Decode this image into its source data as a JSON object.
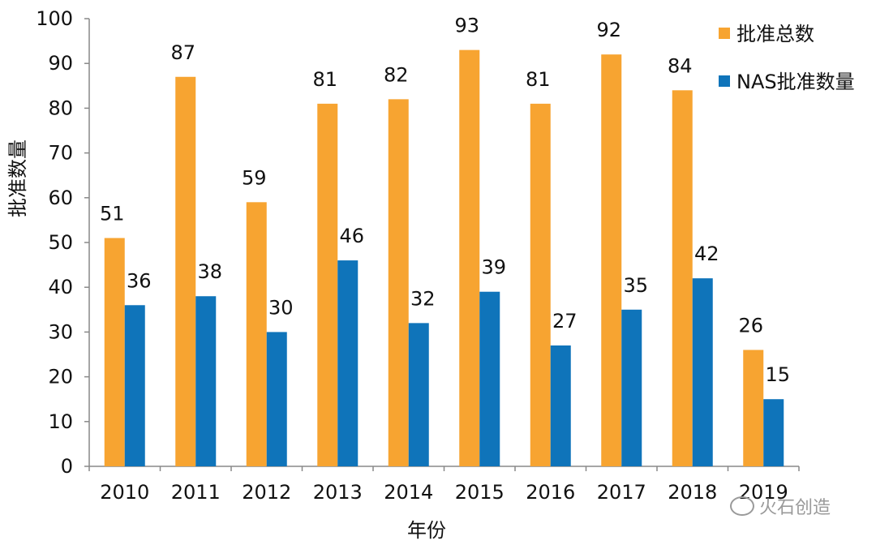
{
  "chart_data": {
    "type": "bar",
    "categories": [
      "2010",
      "2011",
      "2012",
      "2013",
      "2014",
      "2015",
      "2016",
      "2017",
      "2018",
      "2019"
    ],
    "series": [
      {
        "name": "批准总数",
        "values": [
          51,
          87,
          59,
          81,
          82,
          93,
          81,
          92,
          84,
          26
        ]
      },
      {
        "name": "NAS批准数量",
        "values": [
          36,
          38,
          30,
          46,
          32,
          39,
          27,
          35,
          42,
          15
        ]
      }
    ],
    "xlabel": "年份",
    "ylabel": "批准数量",
    "ylim": [
      0,
      100
    ],
    "yticks": [
      "0",
      "10",
      "20",
      "30",
      "40",
      "50",
      "60",
      "70",
      "80",
      "90",
      "100"
    ],
    "legend_position": "top-right",
    "grid": false,
    "colors": {
      "total": "#F7A431",
      "nas": "#0F74BA",
      "axis": "#888888"
    }
  },
  "watermark": {
    "text": "火石创造",
    "icon": "wechat-icon"
  }
}
